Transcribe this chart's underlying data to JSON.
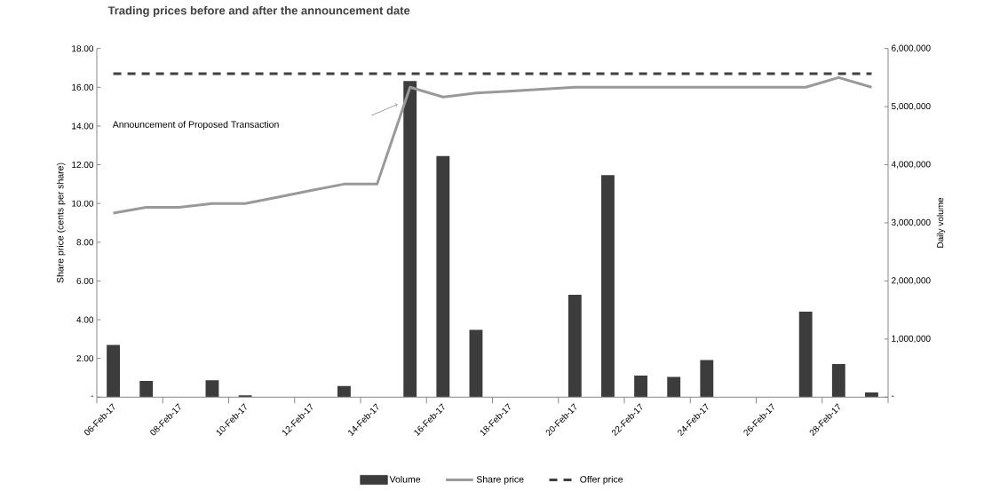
{
  "chart_data": {
    "type": "line",
    "title": "Trading prices before and after the announcement date",
    "ylabel": "Share price (cents per share)",
    "y2label": "Daily volume",
    "categories": [
      "06-Feb-17",
      null,
      "08-Feb-17",
      null,
      "10-Feb-17",
      null,
      "12-Feb-17",
      null,
      "14-Feb-17",
      null,
      "16-Feb-17",
      null,
      "18-Feb-17",
      null,
      "20-Feb-17",
      null,
      "22-Feb-17",
      null,
      "24-Feb-17",
      null,
      "26-Feb-17",
      null,
      "28-Feb-17",
      null
    ],
    "series": [
      {
        "name": "Volume",
        "type": "bar",
        "axis": "y2",
        "color": "#3c3c3c",
        "values": [
          900000,
          280000,
          0,
          290000,
          30000,
          0,
          0,
          190000,
          0,
          5440000,
          4150000,
          1160000,
          0,
          0,
          1760000,
          3820000,
          370000,
          350000,
          640000,
          0,
          0,
          1470000,
          570000,
          80000
        ]
      },
      {
        "name": "Share price",
        "color": "#999999",
        "line_style": "solid",
        "values": [
          9.5,
          9.8,
          9.8,
          10.0,
          10.0,
          10.33,
          10.67,
          11.0,
          11.0,
          16.0,
          15.5,
          15.7,
          15.8,
          15.9,
          16.0,
          16.0,
          16.0,
          16.0,
          16.0,
          16.0,
          16.0,
          16.0,
          16.5,
          16.0
        ]
      },
      {
        "name": "Offer price",
        "color": "#404040",
        "line_style": "dashed",
        "values": [
          16.7,
          16.7,
          16.7,
          16.7,
          16.7,
          16.7,
          16.7,
          16.7,
          16.7,
          16.7,
          16.7,
          16.7,
          16.7,
          16.7,
          16.7,
          16.7,
          16.7,
          16.7,
          16.7,
          16.7,
          16.7,
          16.7,
          16.7,
          16.7
        ]
      }
    ],
    "ylim": [
      0,
      18
    ],
    "yticks": [
      {
        "value": 0,
        "label": "-"
      },
      {
        "value": 2,
        "label": "2.00"
      },
      {
        "value": 4,
        "label": "4.00"
      },
      {
        "value": 6,
        "label": "6.00"
      },
      {
        "value": 8,
        "label": "8.00"
      },
      {
        "value": 10,
        "label": "10.00"
      },
      {
        "value": 12,
        "label": "12.00"
      },
      {
        "value": 14,
        "label": "14.00"
      },
      {
        "value": 16,
        "label": "16.00"
      },
      {
        "value": 18,
        "label": "18.00"
      }
    ],
    "y2lim": [
      0,
      6000000
    ],
    "y2ticks": [
      {
        "value": 0,
        "label": "-"
      },
      {
        "value": 1000000,
        "label": "1,000,000"
      },
      {
        "value": 2000000,
        "label": "2,000,000"
      },
      {
        "value": 3000000,
        "label": "3,000,000"
      },
      {
        "value": 4000000,
        "label": "4,000,000"
      },
      {
        "value": 5000000,
        "label": "5,000,000"
      },
      {
        "value": 6000000,
        "label": "6,000,000"
      }
    ],
    "annotations": [
      "Announcement of Proposed Transaction"
    ],
    "legend": "bottom",
    "grid": false
  }
}
